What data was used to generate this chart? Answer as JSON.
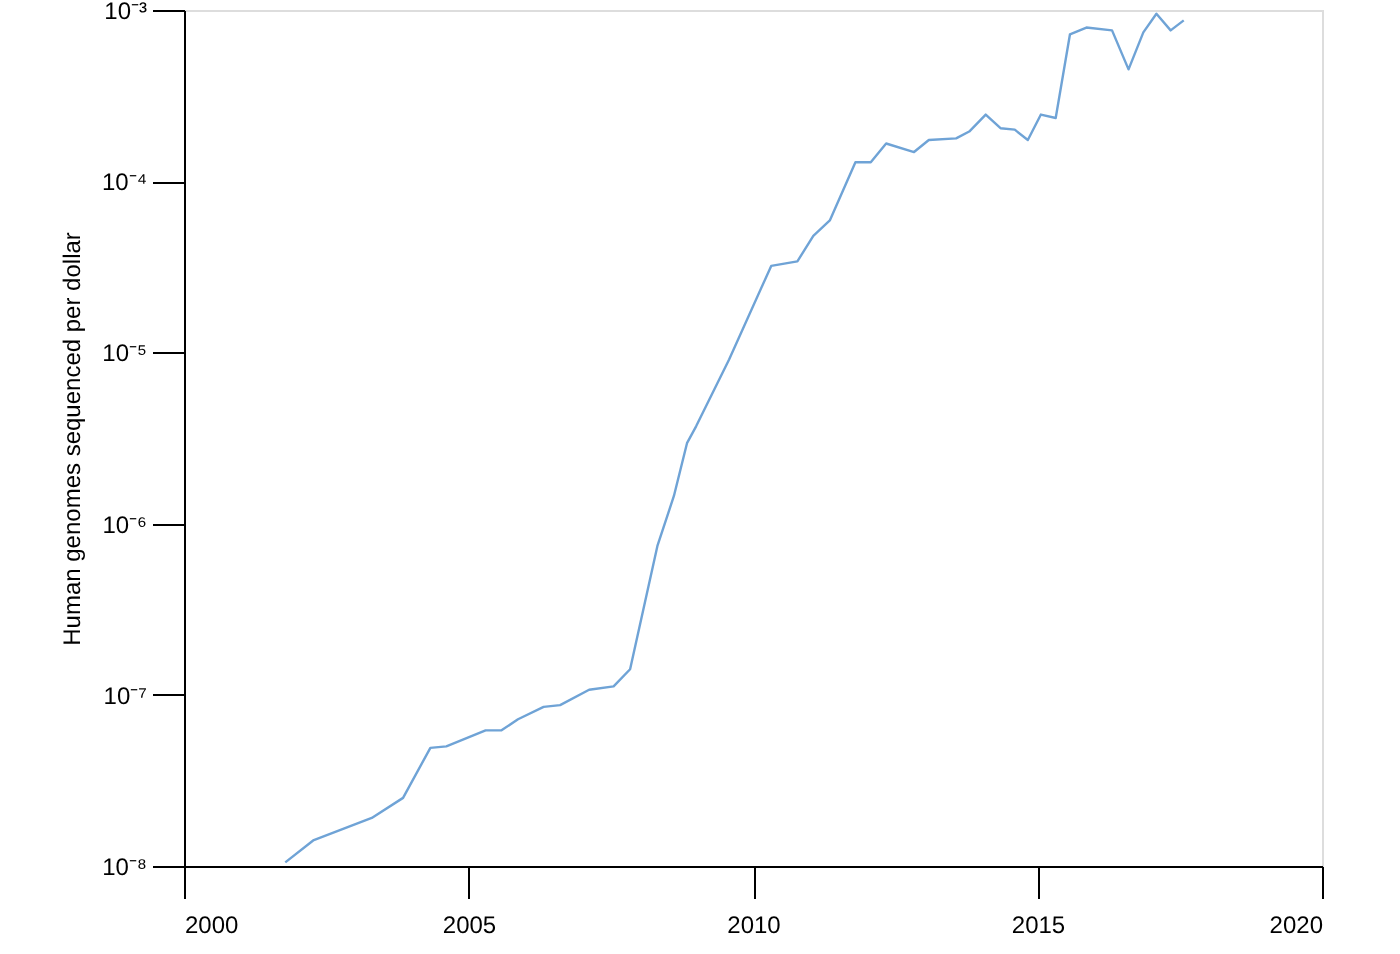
{
  "chart_data": {
    "type": "line",
    "ylabel": "Human genomes sequenced per dollar",
    "log": "y",
    "grid": false,
    "marker": "none",
    "line_style": "solid",
    "xlim": [
      2000,
      2020
    ],
    "xticks": [
      2000,
      2005,
      2010,
      2015,
      2020
    ],
    "ylim": [
      1e-08,
      0.001
    ],
    "yticks": [
      {
        "value": 1e-08,
        "label": "10⁻⁸"
      },
      {
        "value": 1e-07,
        "label": "10⁻⁷"
      },
      {
        "value": 1e-06,
        "label": "10⁻⁶"
      },
      {
        "value": 1e-05,
        "label": "10⁻⁵"
      },
      {
        "value": 0.0001,
        "label": "10⁻⁴"
      },
      {
        "value": 0.001,
        "label": "10⁻³"
      }
    ],
    "series": [
      {
        "color": "#6fa3d6",
        "x": [
          2001.78,
          2002.27,
          2003.3,
          2003.85,
          2004.33,
          2004.61,
          2005.3,
          2005.58,
          2005.87,
          2006.32,
          2006.61,
          2007.12,
          2007.55,
          2007.84,
          2008.32,
          2008.61,
          2008.84,
          2009.0,
          2009.58,
          2010.32,
          2010.78,
          2011.06,
          2011.35,
          2011.8,
          2012.07,
          2012.34,
          2012.83,
          2013.09,
          2013.57,
          2013.8,
          2014.09,
          2014.35,
          2014.6,
          2014.83,
          2015.06,
          2015.32,
          2015.57,
          2015.86,
          2016.31,
          2016.6,
          2016.86,
          2017.09,
          2017.34,
          2017.57
        ],
        "values": [
          1.05e-08,
          1.41e-08,
          1.91e-08,
          2.5e-08,
          4.9e-08,
          5e-08,
          6.2e-08,
          6.2e-08,
          7.2e-08,
          8.5e-08,
          8.7e-08,
          1.07e-07,
          1.12e-07,
          1.41e-07,
          7.4e-07,
          1.45e-06,
          2.95e-06,
          3.7e-06,
          9.1e-06,
          3.2e-05,
          3.4e-05,
          4.8e-05,
          5.9e-05,
          0.000129,
          0.000129,
          0.000166,
          0.000148,
          0.000174,
          0.000178,
          0.000195,
          0.000245,
          0.000204,
          0.0002,
          0.000174,
          0.000245,
          0.000234,
          0.00072,
          0.00079,
          0.00076,
          0.00045,
          0.00074,
          0.00095,
          0.00076,
          0.00087
        ]
      }
    ]
  }
}
